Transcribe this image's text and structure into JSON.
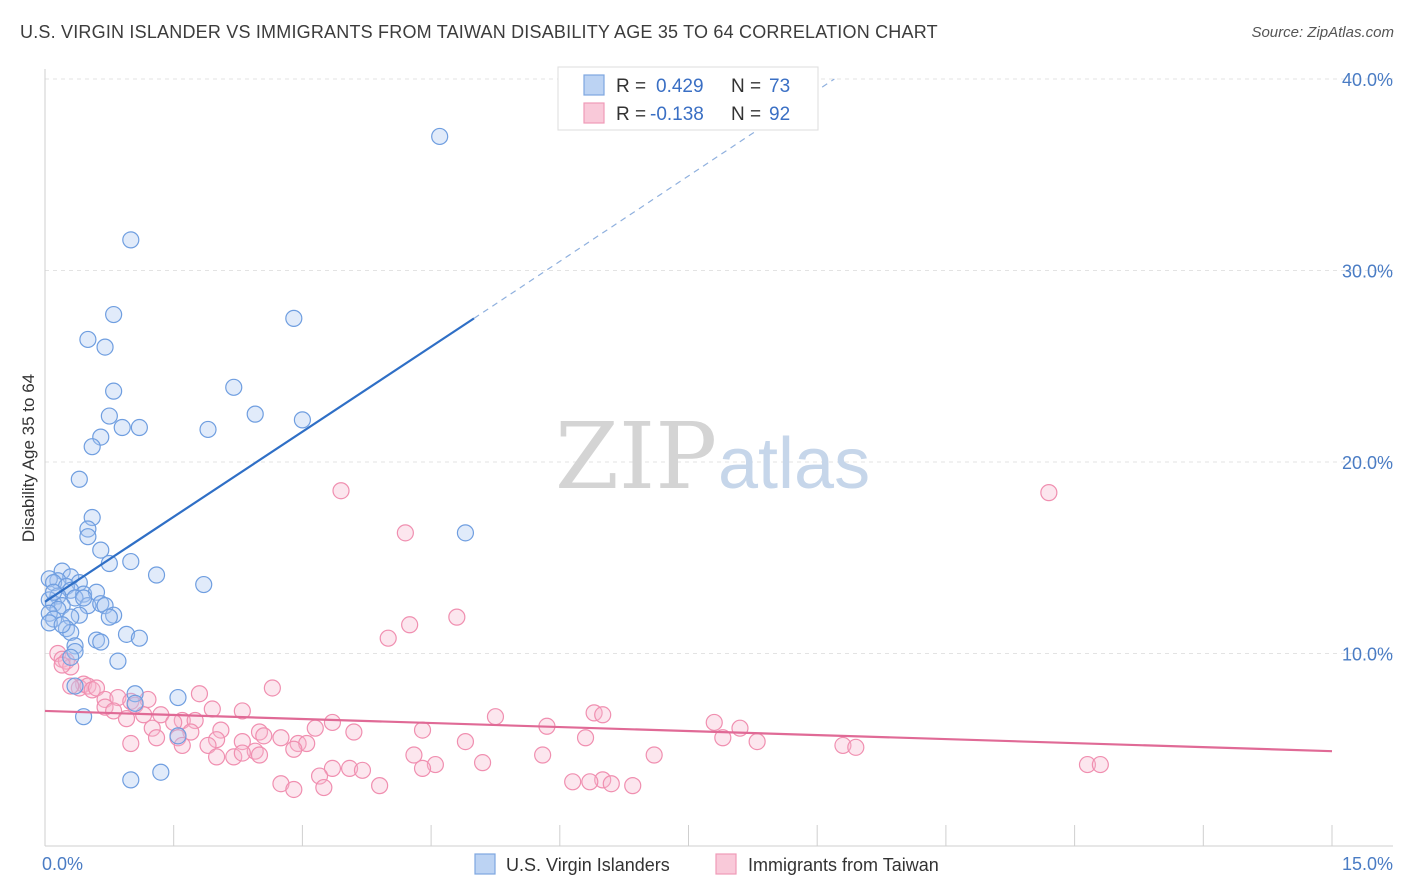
{
  "title": "U.S. VIRGIN ISLANDER VS IMMIGRANTS FROM TAIWAN DISABILITY AGE 35 TO 64 CORRELATION CHART",
  "source": "Source: ZipAtlas.com",
  "watermark": {
    "zip": "ZIP",
    "atlas": "atlas"
  },
  "colors": {
    "blue": "#6f9ee0",
    "blue_line": "#2f6fc6",
    "pink": "#f08fb0",
    "pink_line": "#e06a96",
    "grid": "#e3e3e3"
  },
  "legend": {
    "r_label": "R =",
    "n_label": "N =",
    "series1": {
      "r": "0.429",
      "n": "73"
    },
    "series2": {
      "r": "-0.138",
      "n": "92"
    }
  },
  "chart_data": {
    "type": "scatter",
    "xlabel": "",
    "ylabel": "Disability Age 35 to 64",
    "xlim": [
      0,
      15
    ],
    "ylim": [
      0,
      40
    ],
    "x_tick_labels": [
      "0.0%",
      "15.0%"
    ],
    "y_ticks": [
      10,
      20,
      30,
      40
    ],
    "y_tick_labels": [
      "10.0%",
      "20.0%",
      "30.0%",
      "40.0%"
    ],
    "grid": true,
    "legend_position": "top-center",
    "series": [
      {
        "name": "U.S. Virgin Islanders",
        "color": "#6f9ee0",
        "trend": {
          "x0": 0,
          "y0": 12.7,
          "x1": 5,
          "y1": 27.5,
          "dashed_to_x": 9.2,
          "dashed_to_y": 40.0
        },
        "points": [
          [
            4.6,
            37.0
          ],
          [
            1.0,
            31.6
          ],
          [
            0.8,
            27.7
          ],
          [
            2.9,
            27.5
          ],
          [
            0.5,
            26.4
          ],
          [
            0.7,
            26.0
          ],
          [
            2.2,
            23.9
          ],
          [
            0.8,
            23.7
          ],
          [
            0.75,
            22.4
          ],
          [
            2.45,
            22.5
          ],
          [
            3.0,
            22.2
          ],
          [
            0.9,
            21.8
          ],
          [
            1.1,
            21.8
          ],
          [
            1.9,
            21.7
          ],
          [
            0.65,
            21.3
          ],
          [
            0.55,
            20.8
          ],
          [
            0.4,
            19.1
          ],
          [
            0.55,
            17.1
          ],
          [
            0.5,
            16.5
          ],
          [
            0.5,
            16.1
          ],
          [
            4.9,
            16.3
          ],
          [
            0.65,
            15.4
          ],
          [
            0.75,
            14.7
          ],
          [
            1.0,
            14.8
          ],
          [
            1.3,
            14.1
          ],
          [
            0.2,
            14.3
          ],
          [
            0.3,
            14.0
          ],
          [
            0.15,
            13.8
          ],
          [
            0.05,
            13.9
          ],
          [
            0.1,
            13.7
          ],
          [
            0.4,
            13.7
          ],
          [
            0.25,
            13.5
          ],
          [
            1.85,
            13.6
          ],
          [
            0.3,
            13.3
          ],
          [
            0.45,
            13.1
          ],
          [
            0.6,
            13.2
          ],
          [
            0.15,
            13.0
          ],
          [
            0.35,
            12.9
          ],
          [
            0.05,
            12.8
          ],
          [
            0.1,
            12.6
          ],
          [
            0.2,
            12.5
          ],
          [
            0.5,
            12.5
          ],
          [
            0.65,
            12.6
          ],
          [
            0.7,
            12.5
          ],
          [
            0.15,
            12.3
          ],
          [
            0.05,
            12.1
          ],
          [
            0.4,
            12.0
          ],
          [
            0.8,
            12.0
          ],
          [
            0.3,
            11.9
          ],
          [
            0.1,
            11.8
          ],
          [
            0.75,
            11.9
          ],
          [
            0.05,
            11.6
          ],
          [
            0.25,
            11.3
          ],
          [
            0.3,
            11.1
          ],
          [
            0.95,
            11.0
          ],
          [
            1.1,
            10.8
          ],
          [
            0.6,
            10.7
          ],
          [
            0.65,
            10.6
          ],
          [
            0.35,
            10.4
          ],
          [
            0.35,
            10.1
          ],
          [
            0.3,
            9.8
          ],
          [
            0.85,
            9.6
          ],
          [
            0.35,
            8.3
          ],
          [
            1.05,
            7.9
          ],
          [
            1.55,
            7.7
          ],
          [
            1.05,
            7.4
          ],
          [
            0.45,
            6.7
          ],
          [
            1.55,
            5.7
          ],
          [
            1.0,
            3.4
          ],
          [
            1.35,
            3.8
          ],
          [
            0.2,
            11.5
          ],
          [
            0.1,
            13.2
          ],
          [
            0.45,
            12.9
          ]
        ]
      },
      {
        "name": "Immigrants from Taiwan",
        "color": "#f08fb0",
        "trend": {
          "x0": 0,
          "y0": 7.0,
          "x1": 15,
          "y1": 4.9
        },
        "points": [
          [
            11.7,
            18.4
          ],
          [
            3.45,
            18.5
          ],
          [
            4.2,
            16.3
          ],
          [
            4.8,
            11.9
          ],
          [
            4.25,
            11.5
          ],
          [
            4.0,
            10.8
          ],
          [
            0.15,
            10.0
          ],
          [
            0.2,
            9.7
          ],
          [
            0.25,
            9.6
          ],
          [
            0.3,
            9.3
          ],
          [
            0.2,
            9.4
          ],
          [
            0.45,
            8.4
          ],
          [
            0.4,
            8.2
          ],
          [
            0.5,
            8.3
          ],
          [
            0.55,
            8.1
          ],
          [
            0.6,
            8.2
          ],
          [
            2.65,
            8.2
          ],
          [
            0.7,
            7.6
          ],
          [
            1.2,
            7.6
          ],
          [
            1.8,
            7.9
          ],
          [
            0.85,
            7.7
          ],
          [
            1.0,
            7.5
          ],
          [
            0.7,
            7.2
          ],
          [
            0.8,
            7.0
          ],
          [
            1.05,
            7.3
          ],
          [
            1.95,
            7.1
          ],
          [
            2.3,
            7.0
          ],
          [
            1.15,
            6.8
          ],
          [
            1.35,
            6.8
          ],
          [
            0.95,
            6.6
          ],
          [
            1.6,
            6.5
          ],
          [
            1.75,
            6.5
          ],
          [
            1.5,
            6.4
          ],
          [
            5.25,
            6.7
          ],
          [
            6.4,
            6.9
          ],
          [
            6.5,
            6.8
          ],
          [
            7.8,
            6.4
          ],
          [
            3.35,
            6.4
          ],
          [
            3.15,
            6.1
          ],
          [
            1.25,
            6.1
          ],
          [
            2.05,
            6.0
          ],
          [
            1.7,
            5.9
          ],
          [
            2.5,
            5.9
          ],
          [
            3.6,
            5.9
          ],
          [
            4.4,
            6.0
          ],
          [
            5.85,
            6.2
          ],
          [
            8.1,
            6.1
          ],
          [
            1.3,
            5.6
          ],
          [
            1.55,
            5.6
          ],
          [
            2.0,
            5.5
          ],
          [
            2.75,
            5.6
          ],
          [
            2.55,
            5.7
          ],
          [
            2.3,
            5.4
          ],
          [
            2.95,
            5.3
          ],
          [
            3.05,
            5.3
          ],
          [
            4.9,
            5.4
          ],
          [
            6.3,
            5.6
          ],
          [
            7.9,
            5.6
          ],
          [
            8.3,
            5.4
          ],
          [
            9.3,
            5.2
          ],
          [
            9.45,
            5.1
          ],
          [
            1.0,
            5.3
          ],
          [
            1.6,
            5.2
          ],
          [
            1.9,
            5.2
          ],
          [
            2.45,
            4.9
          ],
          [
            2.9,
            5.0
          ],
          [
            2.2,
            4.6
          ],
          [
            2.3,
            4.8
          ],
          [
            2.5,
            4.7
          ],
          [
            2.0,
            4.6
          ],
          [
            4.3,
            4.7
          ],
          [
            5.8,
            4.7
          ],
          [
            7.1,
            4.7
          ],
          [
            4.55,
            4.2
          ],
          [
            5.1,
            4.3
          ],
          [
            3.55,
            4.0
          ],
          [
            3.35,
            4.0
          ],
          [
            3.7,
            3.9
          ],
          [
            4.4,
            4.0
          ],
          [
            3.2,
            3.6
          ],
          [
            6.5,
            3.4
          ],
          [
            6.35,
            3.3
          ],
          [
            6.15,
            3.3
          ],
          [
            6.6,
            3.2
          ],
          [
            2.75,
            3.2
          ],
          [
            2.9,
            2.9
          ],
          [
            3.25,
            3.0
          ],
          [
            3.9,
            3.1
          ],
          [
            6.85,
            3.1
          ],
          [
            12.15,
            4.2
          ],
          [
            12.3,
            4.2
          ],
          [
            0.3,
            8.3
          ]
        ]
      }
    ]
  }
}
